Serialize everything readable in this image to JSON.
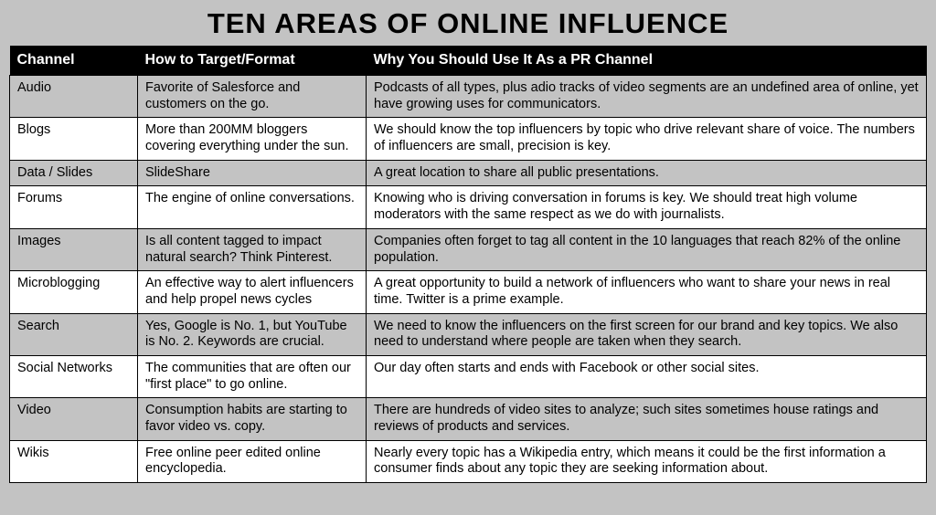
{
  "title": "TEN AREAS OF ONLINE INFLUENCE",
  "columns": [
    "Channel",
    "How to Target/Format",
    "Why You Should Use It As a PR Channel"
  ],
  "row_colors": {
    "shaded": "#c3c3c3",
    "plain": "#ffffff"
  },
  "rows": [
    {
      "shade": true,
      "cells": [
        "Audio",
        "Favorite of Salesforce and customers on the go.",
        "Podcasts of all types, plus adio tracks of video segments are an undefined area of online, yet have growing uses for communicators."
      ]
    },
    {
      "shade": false,
      "cells": [
        "Blogs",
        "More than 200MM bloggers covering everything under the sun.",
        "We should know the top influencers by topic who drive relevant share of voice. The numbers of influencers are small, precision is key."
      ]
    },
    {
      "shade": true,
      "cells": [
        "Data / Slides",
        "SlideShare",
        "A great location to share all public presentations."
      ]
    },
    {
      "shade": false,
      "cells": [
        "Forums",
        "The engine of online conversations.",
        "Knowing who is driving conversation in forums is key. We should treat high volume moderators with the same respect as we do with journalists."
      ]
    },
    {
      "shade": true,
      "cells": [
        "Images",
        "Is all content tagged to impact natural search? Think Pinterest.",
        "Companies often forget to tag all content in the 10 languages that reach 82% of the online population."
      ]
    },
    {
      "shade": false,
      "cells": [
        "Microblogging",
        "An effective way to alert influencers and help propel news cycles",
        "A great opportunity to build a network of influencers who want to share your news in real time. Twitter is a prime example."
      ]
    },
    {
      "shade": true,
      "cells": [
        "Search",
        "Yes, Google is No. 1, but YouTube is No. 2.  Keywords are crucial.",
        "We need to know the influencers on the first screen for our brand and key topics. We also need to understand where people are taken when they search."
      ]
    },
    {
      "shade": false,
      "cells": [
        "Social Networks",
        "The communities that are often our \"first place\" to go online.",
        "Our day often starts and ends with Facebook or other social sites."
      ]
    },
    {
      "shade": true,
      "cells": [
        "Video",
        "Consumption habits are starting to favor video vs. copy.",
        "There are hundreds of video sites to analyze; such sites sometimes house ratings and reviews of products and services."
      ]
    },
    {
      "shade": false,
      "cells": [
        "Wikis",
        "Free online peer edited online encyclopedia.",
        "Nearly every topic has a Wikipedia entry, which means it could be the first information a consumer finds about any topic they are seeking information about."
      ]
    }
  ]
}
